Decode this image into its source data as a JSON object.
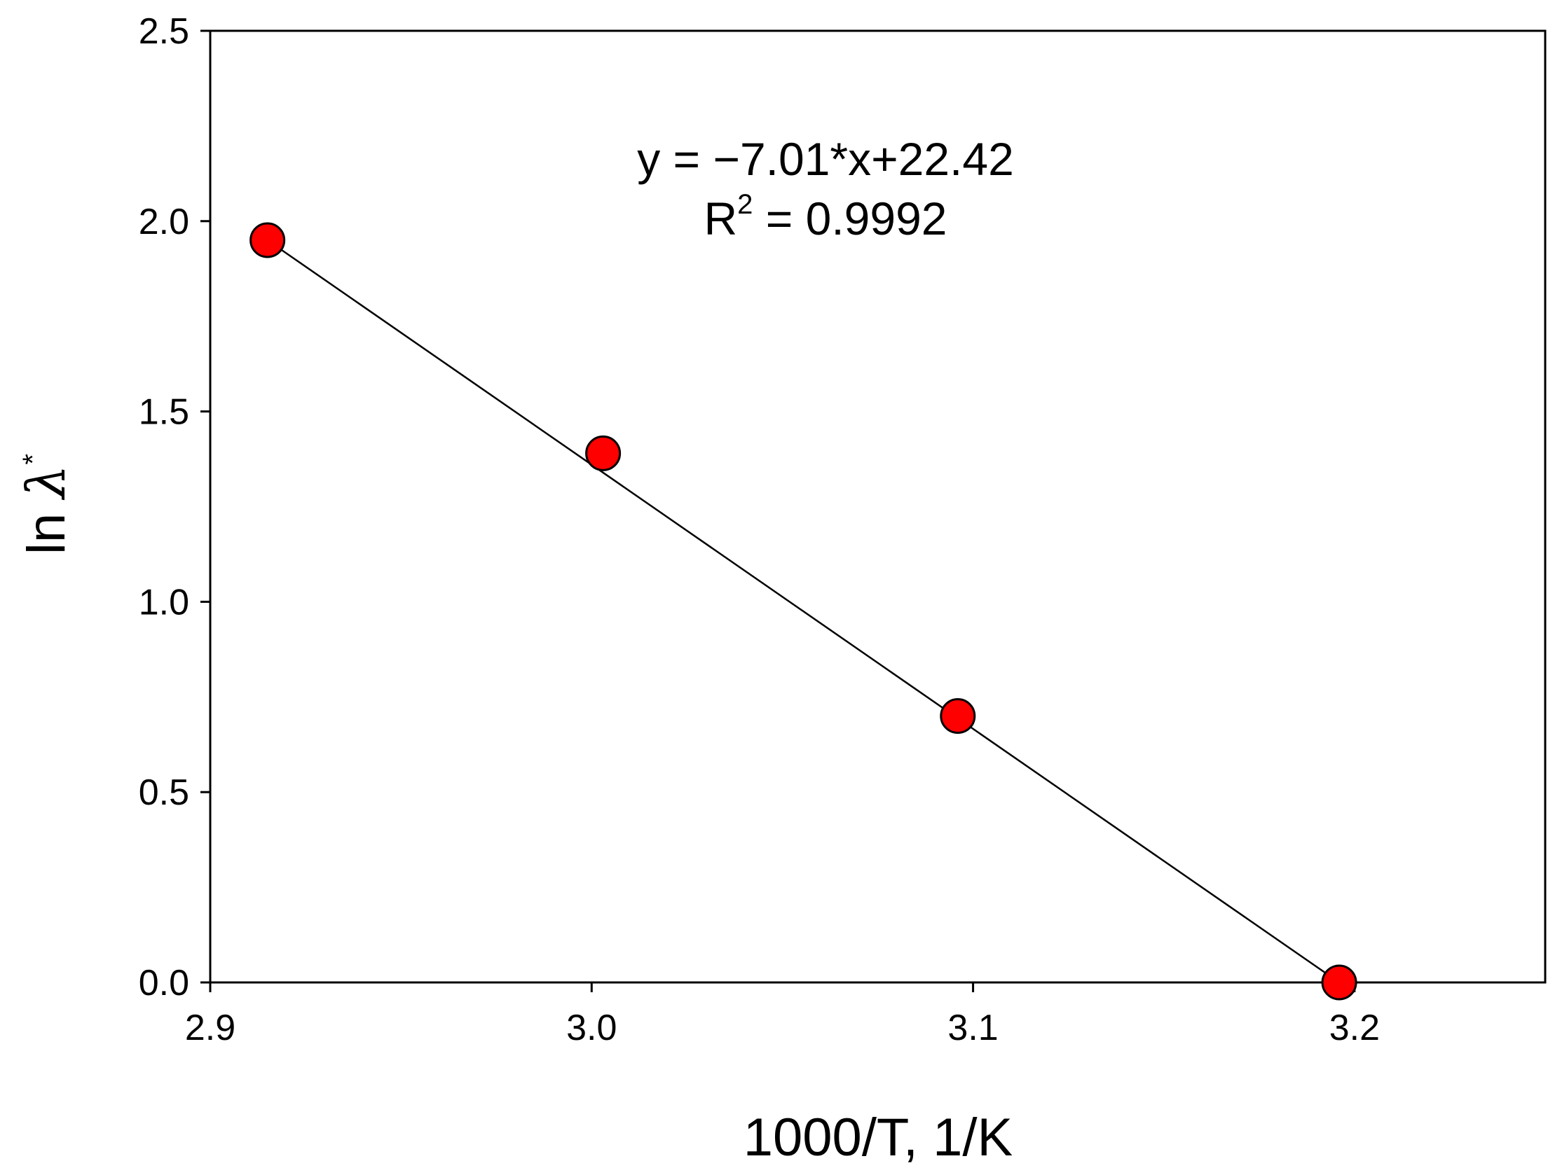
{
  "chart_data": {
    "type": "scatter",
    "title": "",
    "xlabel": "1000/T, 1/K",
    "ylabel_prefix": "ln ",
    "ylabel_symbol": "λ",
    "ylabel_superscript": "*",
    "xlim": [
      2.9,
      3.25
    ],
    "ylim": [
      0.0,
      2.5
    ],
    "grid": false,
    "legend": "none",
    "x_ticks": [
      2.9,
      3.0,
      3.1,
      3.2
    ],
    "x_tick_labels": [
      "2.9",
      "3.0",
      "3.1",
      "3.2"
    ],
    "y_ticks": [
      0.0,
      0.5,
      1.0,
      1.5,
      2.0,
      2.5
    ],
    "y_tick_labels": [
      "0.0",
      "0.5",
      "1.0",
      "1.5",
      "2.0",
      "2.5"
    ],
    "series": [
      {
        "x": [
          2.915,
          3.003,
          3.096,
          3.196
        ],
        "y": [
          1.95,
          1.39,
          0.7,
          0.0
        ],
        "color": "#ff0000",
        "marker": "circle"
      }
    ],
    "fit_line": {
      "x": [
        2.915,
        3.196
      ],
      "y": [
        1.95,
        0.0
      ],
      "color": "#000000"
    },
    "annotations": {
      "equation": "y = −7.01*x+22.42",
      "r2_prefix": "R",
      "r2_superscript": "2",
      "r2_value": " = 0.9992"
    }
  }
}
